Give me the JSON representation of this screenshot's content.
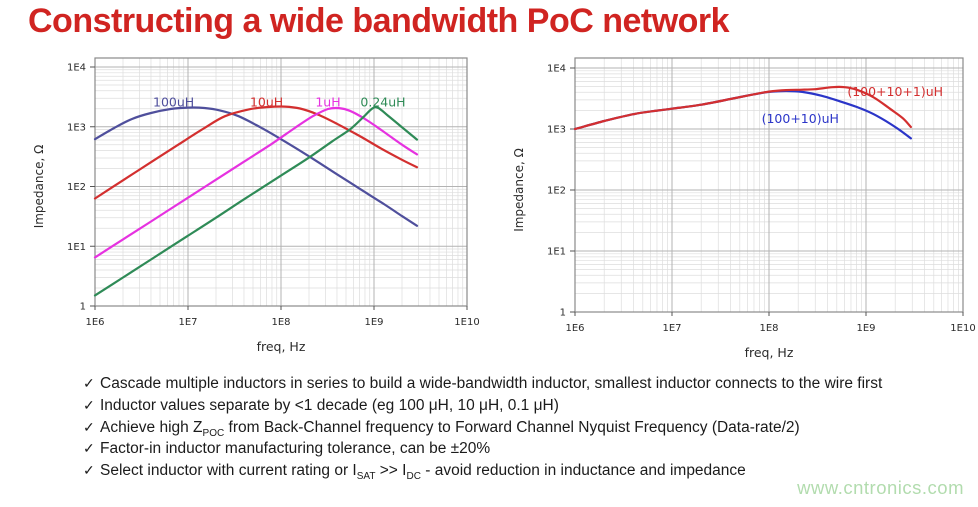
{
  "title": "Constructing a wide bandwidth PoC network",
  "watermark": "www.cntronics.com",
  "colors": {
    "title": "#d02421",
    "watermark": "#b2dcae",
    "grid_major": "#b3b3b3",
    "grid_minor": "#dddddd",
    "axis_box": "#8a8a8a",
    "tick_text": "#2b2b2b",
    "bullet_text": "#1b1b1b"
  },
  "bullets": {
    "marker": "✓",
    "items": [
      [
        {
          "t": "Cascade multiple inductors in series to build a wide-bandwidth inductor, smallest inductor connects to the wire first"
        }
      ],
      [
        {
          "t": "Inductor values separate by <1 decade (eg 100 μH, 10 μH, 0.1 μH)"
        }
      ],
      [
        {
          "t": "Achieve high Z"
        },
        {
          "t": "POC",
          "sub": true
        },
        {
          "t": " from Back-Channel frequency to Forward Channel Nyquist Frequency (Data-rate/2)"
        }
      ],
      [
        {
          "t": "Factor-in inductor manufacturing tolerance, can be ±20%"
        }
      ],
      [
        {
          "t": "Select inductor with current rating or I"
        },
        {
          "t": "SAT",
          "sub": true
        },
        {
          "t": " >> I"
        },
        {
          "t": "DC",
          "sub": true
        },
        {
          "t": " - avoid reduction in inductance and impedance"
        }
      ]
    ]
  },
  "chart_data": [
    {
      "type": "line",
      "name": "individual-inductors",
      "xlabel": "freq, Hz",
      "ylabel": "Impedance, Ω",
      "xscale": "log",
      "yscale": "log",
      "xlim": [
        1000000.0,
        10000000000.0
      ],
      "ylim": [
        1,
        10000.0
      ],
      "x_ticks": [
        "1E6",
        "1E7",
        "1E8",
        "1E9",
        "1E10"
      ],
      "y_ticks": [
        "1",
        "1E1",
        "1E2",
        "1E3",
        "1E4"
      ],
      "grid": true,
      "legend_position": "inline-labels",
      "series": [
        {
          "name": "100uH",
          "color": "#4f4f9c",
          "label_at": [
            7000000.0,
            2200
          ],
          "points": [
            [
              1000000.0,
              620
            ],
            [
              1600000.0,
              950
            ],
            [
              2500000.0,
              1350
            ],
            [
              4000000.0,
              1700
            ],
            [
              6500000.0,
              1980
            ],
            [
              10000000.0,
              2090
            ],
            [
              15000000.0,
              2060
            ],
            [
              22000000.0,
              1880
            ],
            [
              35000000.0,
              1500
            ],
            [
              60000000.0,
              980
            ],
            [
              100000000.0,
              620
            ],
            [
              200000000.0,
              320
            ],
            [
              400000000.0,
              160
            ],
            [
              700000000.0,
              92
            ],
            [
              1300000000.0,
              50
            ],
            [
              2000000000.0,
              32
            ],
            [
              2900000000.0,
              22
            ]
          ]
        },
        {
          "name": "10uH",
          "color": "#d32f2f",
          "label_at": [
            70000000.0,
            2200
          ],
          "points": [
            [
              1000000.0,
              63
            ],
            [
              2000000.0,
              127
            ],
            [
              4000000.0,
              255
            ],
            [
              8000000.0,
              510
            ],
            [
              15000000.0,
              950
            ],
            [
              25000000.0,
              1500
            ],
            [
              45000000.0,
              1950
            ],
            [
              70000000.0,
              2130
            ],
            [
              110000000.0,
              2170
            ],
            [
              160000000.0,
              2020
            ],
            [
              250000000.0,
              1600
            ],
            [
              400000000.0,
              1120
            ],
            [
              700000000.0,
              700
            ],
            [
              1200000000.0,
              430
            ],
            [
              2000000000.0,
              280
            ],
            [
              2900000000.0,
              210
            ]
          ]
        },
        {
          "name": "1uH",
          "color": "#e632e0",
          "label_at": [
            320000000.0,
            2200
          ],
          "points": [
            [
              1000000.0,
              6.5
            ],
            [
              2000000.0,
              13
            ],
            [
              4000000.0,
              26
            ],
            [
              10000000.0,
              65
            ],
            [
              20000000.0,
              130
            ],
            [
              40000000.0,
              260
            ],
            [
              80000000.0,
              520
            ],
            [
              140000000.0,
              950
            ],
            [
              220000000.0,
              1500
            ],
            [
              320000000.0,
              1980
            ],
            [
              420000000.0,
              2050
            ],
            [
              550000000.0,
              1850
            ],
            [
              800000000.0,
              1350
            ],
            [
              1200000000.0,
              880
            ],
            [
              2000000000.0,
              500
            ],
            [
              2900000000.0,
              345
            ]
          ]
        },
        {
          "name": "0.24uH",
          "color": "#2f8b57",
          "label_at": [
            1250000000.0,
            2200
          ],
          "points": [
            [
              1000000.0,
              1.5
            ],
            [
              2000000.0,
              3
            ],
            [
              4000000.0,
              6
            ],
            [
              10000000.0,
              15
            ],
            [
              20000000.0,
              30
            ],
            [
              40000000.0,
              61
            ],
            [
              100000000.0,
              152
            ],
            [
              200000000.0,
              305
            ],
            [
              350000000.0,
              560
            ],
            [
              550000000.0,
              900
            ],
            [
              750000000.0,
              1400
            ],
            [
              950000000.0,
              2000
            ],
            [
              1100000000.0,
              2080
            ],
            [
              1400000000.0,
              1550
            ],
            [
              2000000000.0,
              980
            ],
            [
              2900000000.0,
              610
            ]
          ]
        }
      ]
    },
    {
      "type": "line",
      "name": "cascaded-inductors",
      "xlabel": "freq, Hz",
      "ylabel": "Impedance, Ω",
      "xscale": "log",
      "yscale": "log",
      "xlim": [
        1000000.0,
        10000000000.0
      ],
      "ylim": [
        1,
        10000.0
      ],
      "x_ticks": [
        "1E6",
        "1E7",
        "1E8",
        "1E9",
        "1E10"
      ],
      "y_ticks": [
        "1",
        "1E1",
        "1E2",
        "1E3",
        "1E4"
      ],
      "grid": true,
      "legend_position": "inline-labels",
      "series": [
        {
          "name": "(100+10)uH",
          "color": "#2b35c8",
          "label_at": [
            210000000.0,
            1250
          ],
          "points": [
            [
              1000000.0,
              1000
            ],
            [
              2000000.0,
              1350
            ],
            [
              4000000.0,
              1750
            ],
            [
              7000000.0,
              2000
            ],
            [
              10000000.0,
              2150
            ],
            [
              20000000.0,
              2500
            ],
            [
              40000000.0,
              3100
            ],
            [
              70000000.0,
              3700
            ],
            [
              100000000.0,
              4050
            ],
            [
              150000000.0,
              4200
            ],
            [
              220000000.0,
              4050
            ],
            [
              350000000.0,
              3500
            ],
            [
              500000000.0,
              2950
            ],
            [
              800000000.0,
              2300
            ],
            [
              1200000000.0,
              1750
            ],
            [
              2000000000.0,
              1080
            ],
            [
              2900000000.0,
              700
            ]
          ]
        },
        {
          "name": "(100+10+1)uH",
          "color": "#d32f2f",
          "label_at": [
            2000000000.0,
            3500
          ],
          "points": [
            [
              1000000.0,
              1000
            ],
            [
              2000000.0,
              1350
            ],
            [
              4000000.0,
              1750
            ],
            [
              7000000.0,
              2000
            ],
            [
              10000000.0,
              2150
            ],
            [
              20000000.0,
              2500
            ],
            [
              40000000.0,
              3100
            ],
            [
              70000000.0,
              3700
            ],
            [
              100000000.0,
              4100
            ],
            [
              150000000.0,
              4350
            ],
            [
              220000000.0,
              4400
            ],
            [
              300000000.0,
              4500
            ],
            [
              450000000.0,
              4850
            ],
            [
              600000000.0,
              4850
            ],
            [
              800000000.0,
              4400
            ],
            [
              1200000000.0,
              3300
            ],
            [
              1800000000.0,
              2100
            ],
            [
              2400000000.0,
              1500
            ],
            [
              2900000000.0,
              1080
            ]
          ]
        }
      ]
    }
  ]
}
